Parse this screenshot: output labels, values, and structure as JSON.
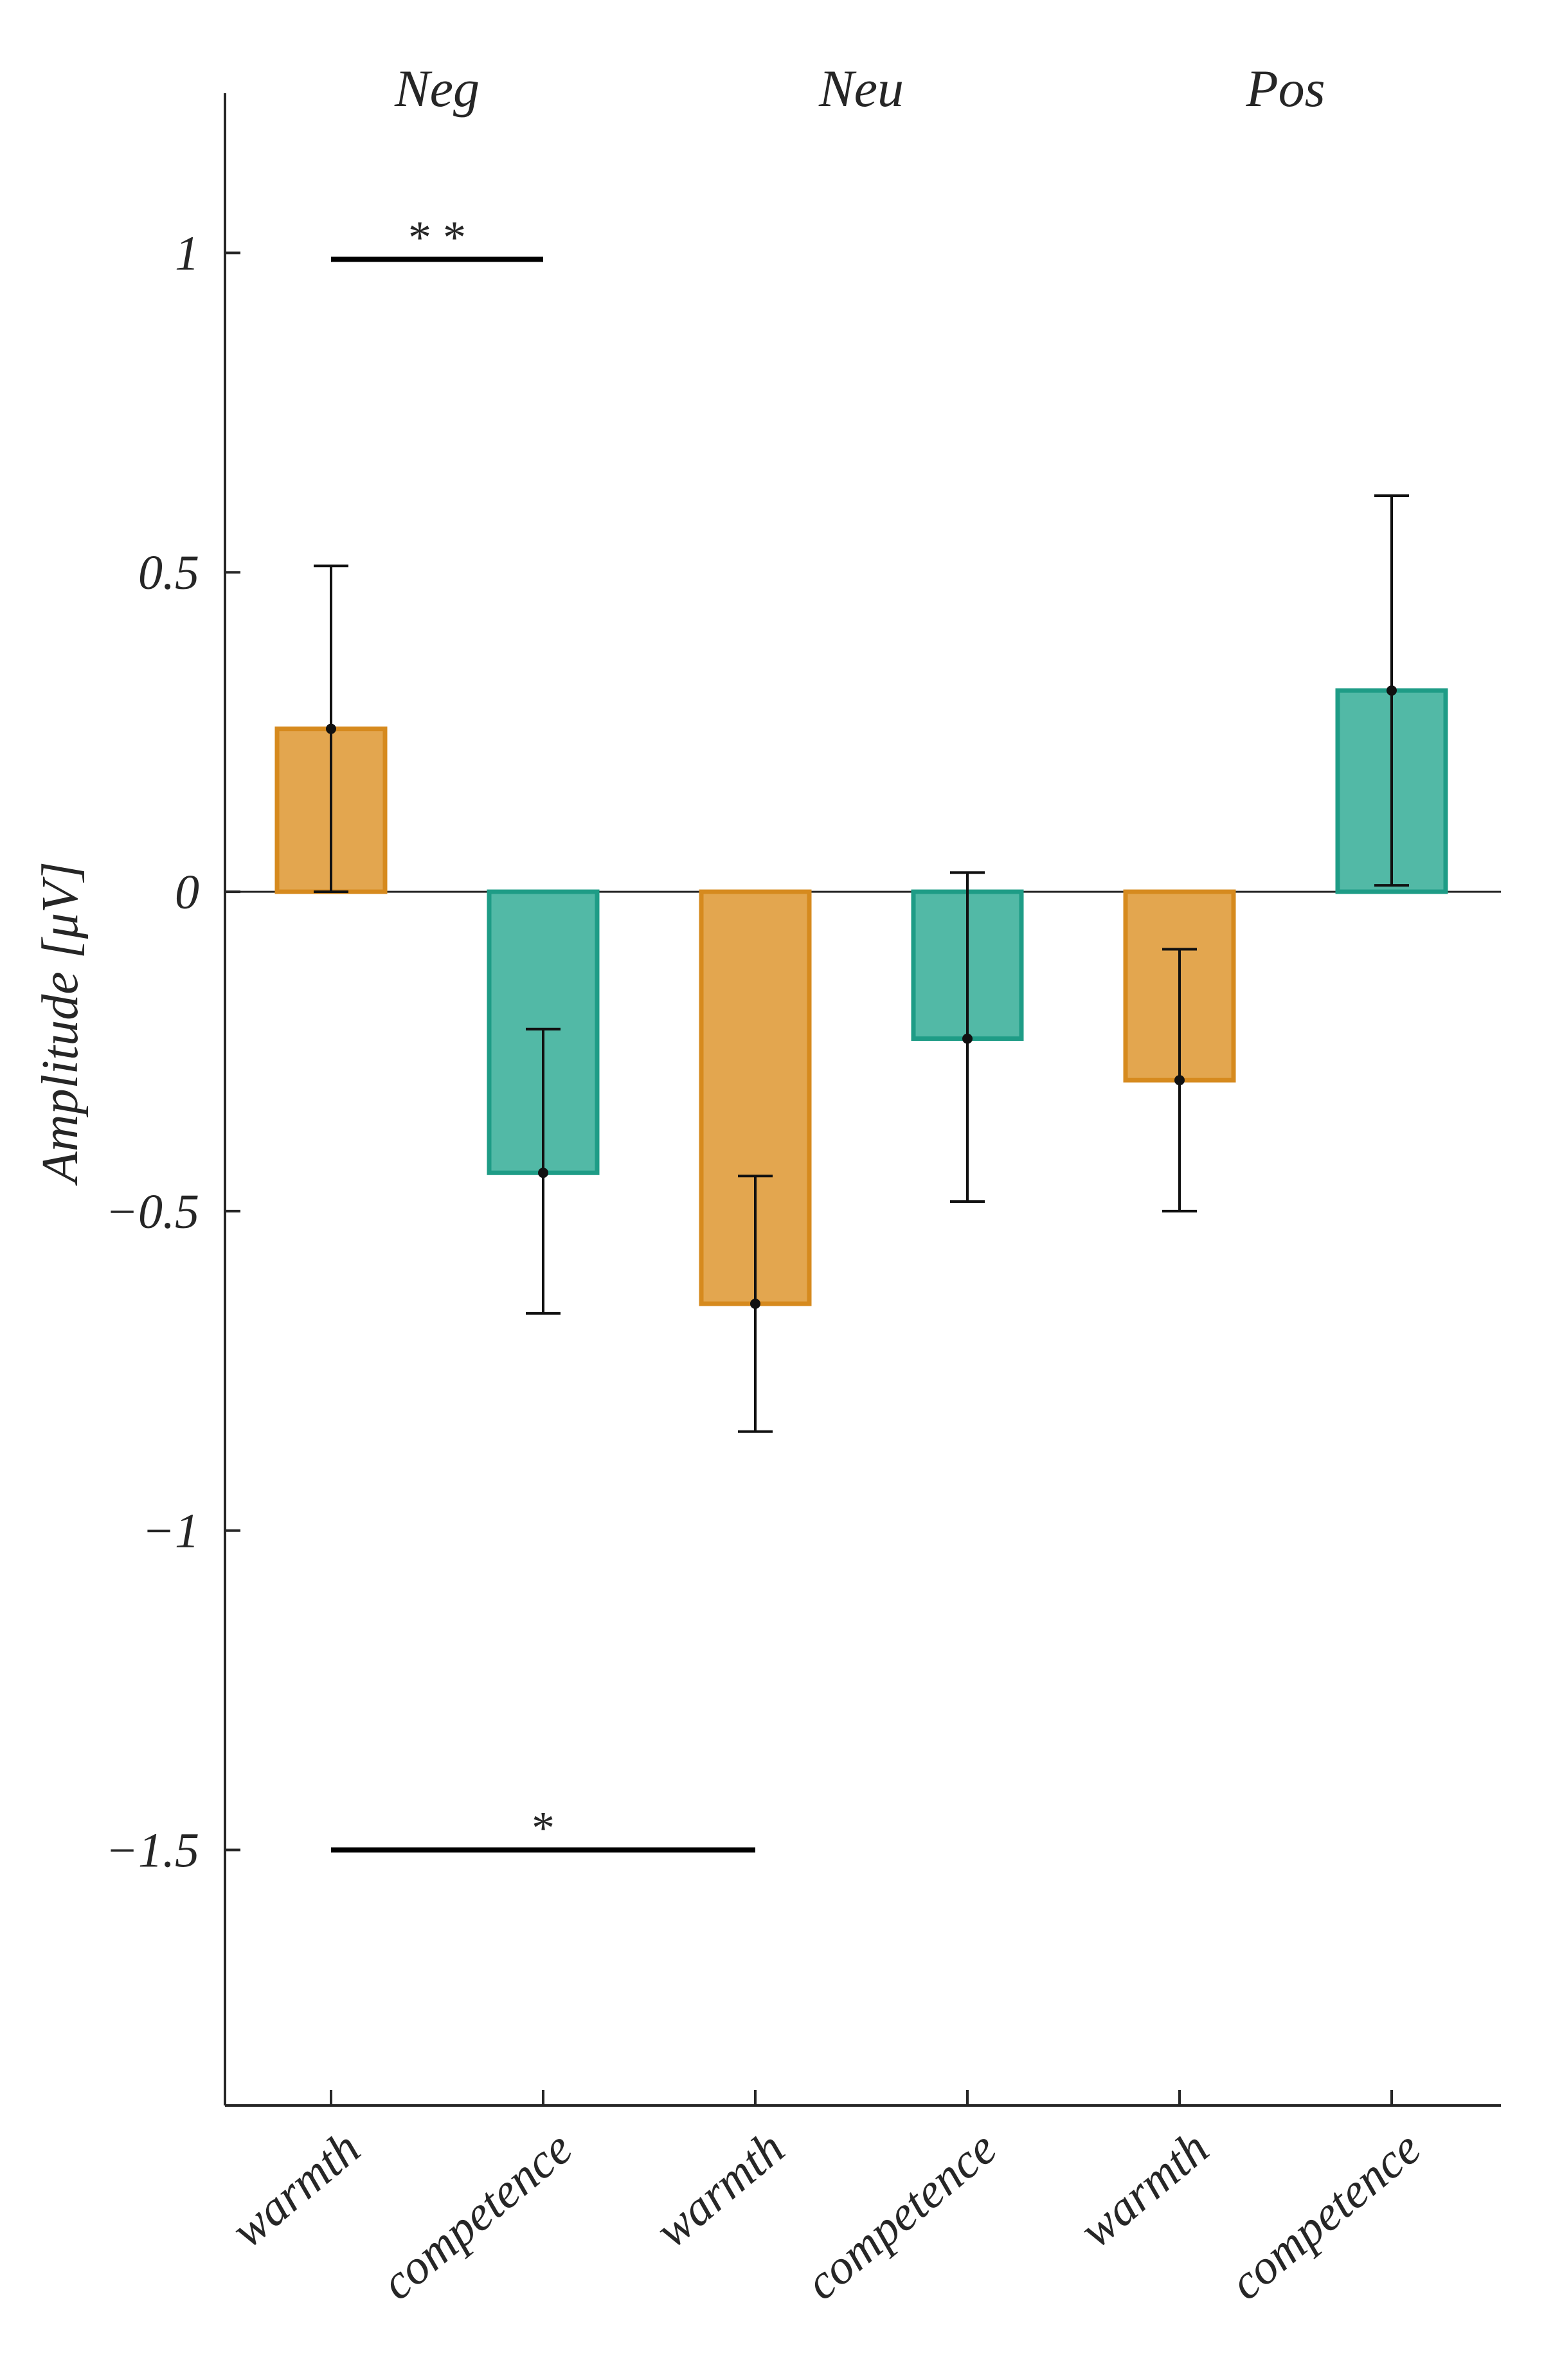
{
  "chart_data": {
    "type": "bar",
    "ylabel": "Amplitude [μV]",
    "ylim": [
      -1.9,
      1.25
    ],
    "yticks": [
      1,
      0.5,
      0,
      -0.5,
      -1,
      -1.5
    ],
    "ytick_labels": [
      "1",
      "0.5",
      "0",
      "−0.5",
      "−1",
      "−1.5"
    ],
    "groups": [
      {
        "label": "Neg"
      },
      {
        "label": "Neu"
      },
      {
        "label": "Pos"
      }
    ],
    "categories": [
      "warmth",
      "competence",
      "warmth",
      "competence",
      "warmth",
      "competence"
    ],
    "bars": [
      {
        "group": "Neg",
        "category": "warmth",
        "value": 0.255,
        "err_low": 0.0,
        "err_high": 0.51,
        "color": "#E3A64F"
      },
      {
        "group": "Neg",
        "category": "competence",
        "value": -0.44,
        "err_low": -0.66,
        "err_high": -0.215,
        "color": "#52B9A6"
      },
      {
        "group": "Neu",
        "category": "warmth",
        "value": -0.645,
        "err_low": -0.845,
        "err_high": -0.445,
        "color": "#E3A64F"
      },
      {
        "group": "Neu",
        "category": "competence",
        "value": -0.23,
        "err_low": -0.485,
        "err_high": 0.03,
        "color": "#52B9A6"
      },
      {
        "group": "Pos",
        "category": "warmth",
        "value": -0.295,
        "err_low": -0.5,
        "err_high": -0.09,
        "color": "#E3A64F"
      },
      {
        "group": "Pos",
        "category": "competence",
        "value": 0.315,
        "err_low": 0.01,
        "err_high": 0.62,
        "color": "#52B9A6"
      }
    ],
    "bar_edge_colors": {
      "warmth": "#D68A1E",
      "competence": "#1E9C86"
    },
    "significance": [
      {
        "from_bar": 0,
        "to_bar": 1,
        "y": 0.99,
        "label": "* *"
      },
      {
        "from_bar": 0,
        "to_bar": 2,
        "y": -1.5,
        "label": "*"
      }
    ]
  }
}
